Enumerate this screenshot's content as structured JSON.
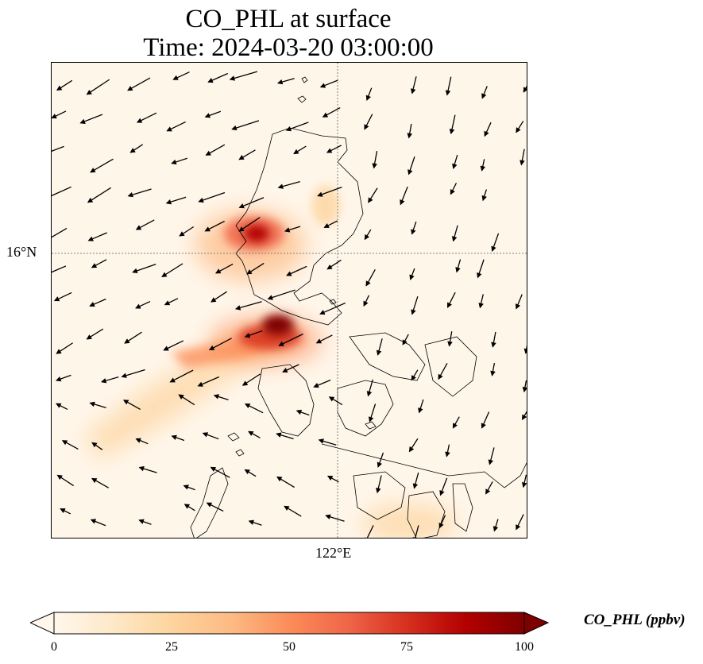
{
  "title": {
    "line1": "CO_PHL at surface",
    "line2": "Time: 2024-03-20 03:00:00"
  },
  "map": {
    "lat_tick": "16°N",
    "lon_tick": "122°E",
    "gridline_style": "dotted grey",
    "background_color": "#fff6ea"
  },
  "colorbar": {
    "label": "CO_PHL (ppbv)",
    "ticks": [
      "0",
      "25",
      "50",
      "75",
      "100"
    ],
    "min": 0,
    "max": 100,
    "colormap": "OrRd",
    "colors": [
      "#fff7ec",
      "#fee8c8",
      "#fdd49e",
      "#fdbb84",
      "#fc8d59",
      "#ef6548",
      "#d7301f",
      "#b30000",
      "#7f0000"
    ],
    "extend": "both"
  },
  "plumes": [
    {
      "name": "northern-plume-core",
      "level": 95
    },
    {
      "name": "central-plume-core",
      "level": 100
    },
    {
      "name": "southwest-trail",
      "level": 55
    }
  ],
  "wind": {
    "prevailing_direction": "from northeast",
    "arrow_color": "#000000"
  }
}
